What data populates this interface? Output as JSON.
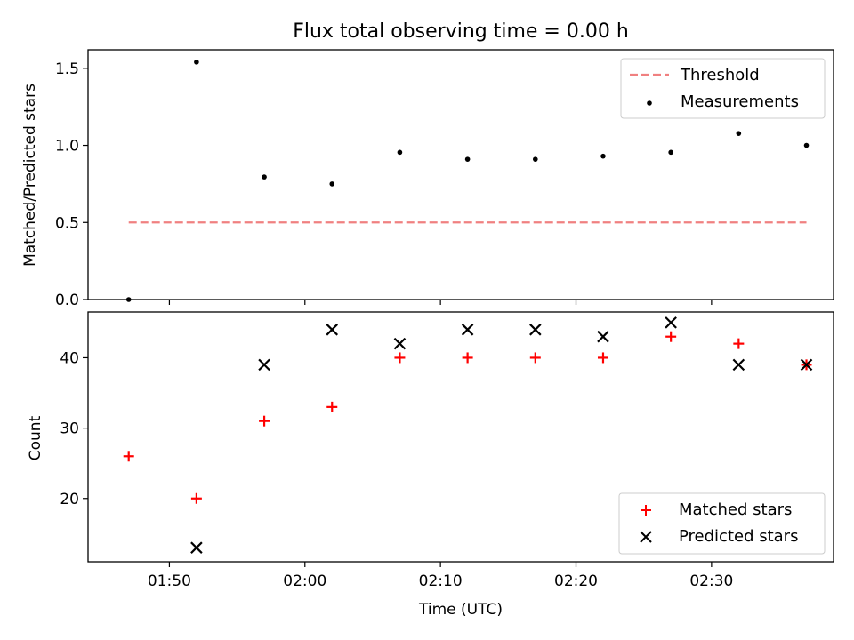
{
  "chart_data": [
    {
      "type": "scatter",
      "title": "Flux total observing time = 0.00 h",
      "ylabel": "Matched/Predicted stars",
      "xlabel": "",
      "x": [
        "01:47",
        "01:52",
        "01:57",
        "02:02",
        "02:07",
        "02:12",
        "02:17",
        "02:22",
        "02:27",
        "02:32",
        "02:37"
      ],
      "ylim": [
        0,
        1.62
      ],
      "yticks": [
        "0.0",
        "0.5",
        "1.0",
        "1.5"
      ],
      "legend_position": "top-right",
      "grid": false,
      "series": [
        {
          "name": "Threshold",
          "kind": "dashed-line",
          "color": "#f08080",
          "x": [
            "01:47",
            "02:37"
          ],
          "values": [
            0.5,
            0.5
          ]
        },
        {
          "name": "Measurements",
          "kind": "dot",
          "color": "#000000",
          "values": [
            0.0,
            1.54,
            0.795,
            0.75,
            0.955,
            0.91,
            0.91,
            0.93,
            0.955,
            1.077,
            1.0
          ]
        }
      ]
    },
    {
      "type": "scatter",
      "title": "",
      "ylabel": "Count",
      "xlabel": "Time (UTC)",
      "x": [
        "01:47",
        "01:52",
        "01:57",
        "02:02",
        "02:07",
        "02:12",
        "02:17",
        "02:22",
        "02:27",
        "02:32",
        "02:37"
      ],
      "xticks": [
        "01:50",
        "02:00",
        "02:10",
        "02:20",
        "02:30"
      ],
      "xlim": [
        "01:44",
        "02:39"
      ],
      "ylim": [
        11,
        46.5
      ],
      "yticks": [
        "20",
        "30",
        "40"
      ],
      "legend_position": "bottom-right",
      "grid": false,
      "series": [
        {
          "name": "Matched stars",
          "kind": "plus",
          "color": "#ff0000",
          "values": [
            26,
            20,
            31,
            33,
            40,
            40,
            40,
            40,
            43,
            42,
            39
          ]
        },
        {
          "name": "Predicted stars",
          "kind": "x",
          "color": "#000000",
          "values": [
            null,
            13,
            39,
            44,
            42,
            44,
            44,
            43,
            45,
            39,
            39
          ]
        }
      ]
    }
  ]
}
